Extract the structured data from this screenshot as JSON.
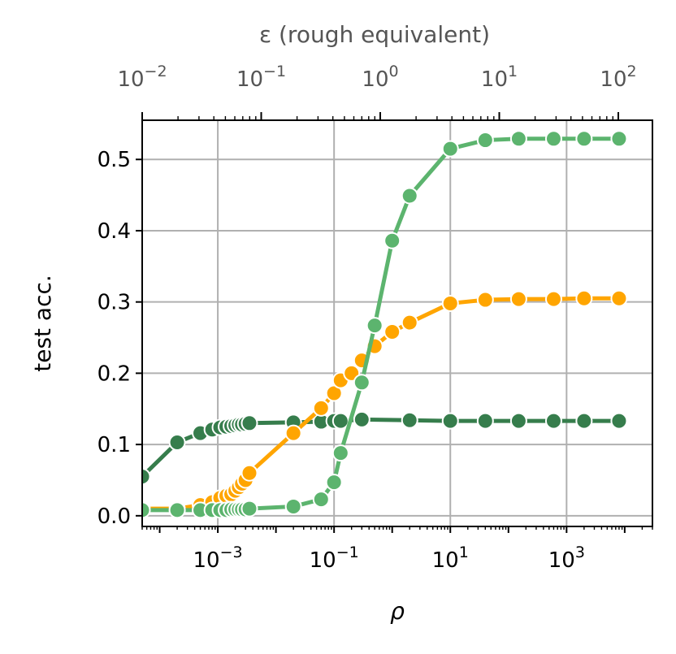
{
  "chart_data": {
    "type": "line",
    "xlabel": "ρ",
    "ylabel": "test acc.",
    "x_scale": "log",
    "xlim": [
      5e-05,
      30000
    ],
    "ylim": [
      -0.015,
      0.555
    ],
    "grid": true,
    "x_ticks": [
      {
        "value": 0.001,
        "base": "10",
        "exp": "−3"
      },
      {
        "value": 0.1,
        "base": "10",
        "exp": "−1"
      },
      {
        "value": 10,
        "base": "10",
        "exp": "1"
      },
      {
        "value": 1000,
        "base": "10",
        "exp": "3"
      }
    ],
    "y_ticks": [
      {
        "value": 0.0,
        "label": "0.0"
      },
      {
        "value": 0.1,
        "label": "0.1"
      },
      {
        "value": 0.2,
        "label": "0.2"
      },
      {
        "value": 0.3,
        "label": "0.3"
      },
      {
        "value": 0.4,
        "label": "0.4"
      },
      {
        "value": 0.5,
        "label": "0.5"
      }
    ],
    "top_axis": {
      "label": "ε (rough equivalent)",
      "scale": "log",
      "ticks": [
        {
          "value": 0.01,
          "base": "10",
          "exp": "−2"
        },
        {
          "value": 0.1,
          "base": "10",
          "exp": "−1"
        },
        {
          "value": 1,
          "base": "10",
          "exp": "0"
        },
        {
          "value": 10,
          "base": "10",
          "exp": "1"
        },
        {
          "value": 100,
          "base": "10",
          "exp": "2"
        }
      ]
    },
    "series": [
      {
        "color": "#367d4c",
        "x": [
          5e-05,
          0.0002,
          0.0005,
          0.0008,
          0.0011,
          0.0014,
          0.0017,
          0.002,
          0.0023,
          0.0026,
          0.003,
          0.0035,
          0.02,
          0.06,
          0.1,
          0.13,
          0.3,
          2,
          10,
          40,
          150,
          600,
          2000,
          8000
        ],
        "y": [
          0.055,
          0.103,
          0.116,
          0.121,
          0.124,
          0.125,
          0.126,
          0.127,
          0.128,
          0.128,
          0.129,
          0.13,
          0.131,
          0.132,
          0.133,
          0.133,
          0.135,
          0.134,
          0.133,
          0.133,
          0.133,
          0.133,
          0.133,
          0.133
        ]
      },
      {
        "color": "#ffa500",
        "x": [
          5e-05,
          0.0002,
          0.0005,
          0.0008,
          0.0011,
          0.0014,
          0.0017,
          0.002,
          0.0023,
          0.0026,
          0.003,
          0.0035,
          0.02,
          0.06,
          0.1,
          0.13,
          0.2,
          0.3,
          0.5,
          1,
          2,
          10,
          40,
          150,
          600,
          2000,
          8000
        ],
        "y": [
          0.01,
          0.01,
          0.015,
          0.019,
          0.025,
          0.028,
          0.03,
          0.035,
          0.04,
          0.045,
          0.05,
          0.06,
          0.116,
          0.151,
          0.172,
          0.19,
          0.2,
          0.218,
          0.238,
          0.258,
          0.271,
          0.298,
          0.303,
          0.304,
          0.304,
          0.305,
          0.305
        ]
      },
      {
        "color": "#5cb46e",
        "x": [
          5e-05,
          0.0002,
          0.0005,
          0.0008,
          0.0011,
          0.0014,
          0.0017,
          0.002,
          0.0023,
          0.0026,
          0.003,
          0.0035,
          0.02,
          0.06,
          0.1,
          0.13,
          0.3,
          0.5,
          1,
          2,
          10,
          40,
          150,
          600,
          2000,
          8000
        ],
        "y": [
          0.008,
          0.008,
          0.008,
          0.008,
          0.008,
          0.008,
          0.009,
          0.009,
          0.009,
          0.009,
          0.009,
          0.01,
          0.013,
          0.023,
          0.047,
          0.088,
          0.187,
          0.267,
          0.386,
          0.449,
          0.515,
          0.527,
          0.529,
          0.529,
          0.529,
          0.529
        ]
      }
    ]
  }
}
